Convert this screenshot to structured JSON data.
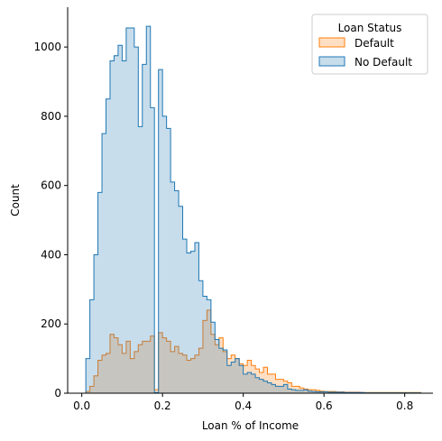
{
  "chart_data": {
    "type": "histogram",
    "xlabel": "Loan % of Income",
    "ylabel": "Count",
    "xlim": [
      -0.035,
      0.87
    ],
    "ylim": [
      0,
      1115
    ],
    "x_ticks": [
      0.0,
      0.2,
      0.4,
      0.6,
      0.8
    ],
    "x_tick_labels": [
      "0.0",
      "0.2",
      "0.4",
      "0.6",
      "0.8"
    ],
    "y_ticks": [
      0,
      200,
      400,
      600,
      800,
      1000
    ],
    "y_tick_labels": [
      "0",
      "200",
      "400",
      "600",
      "800",
      "1000"
    ],
    "grid": false,
    "legend": {
      "title": "Loan Status",
      "placement": "top-right",
      "entries": [
        {
          "label": "Default",
          "color": "#ff7f0e"
        },
        {
          "label": "No Default",
          "color": "#1f77b4"
        }
      ]
    },
    "bin_start": 0.0,
    "bin_width": 0.01,
    "series": [
      {
        "name": "No Default",
        "color": "#1f77b4",
        "fill_opacity": 0.25,
        "values": [
          0,
          100,
          270,
          400,
          580,
          750,
          850,
          960,
          975,
          1005,
          960,
          1055,
          1055,
          1000,
          770,
          950,
          1060,
          825,
          2,
          935,
          800,
          765,
          610,
          585,
          540,
          445,
          405,
          410,
          435,
          325,
          280,
          270,
          205,
          155,
          130,
          125,
          80,
          90,
          100,
          80,
          55,
          60,
          55,
          45,
          40,
          35,
          30,
          25,
          20,
          20,
          25,
          12,
          10,
          8,
          8,
          10,
          6,
          5,
          4,
          4,
          4,
          3,
          3,
          3,
          3,
          2,
          2,
          2,
          2,
          2,
          1,
          1,
          1,
          1,
          1,
          1,
          1,
          1,
          1,
          1,
          1,
          1,
          1,
          1
        ]
      },
      {
        "name": "Default",
        "color": "#ff7f0e",
        "fill_opacity": 0.25,
        "values": [
          0,
          5,
          20,
          50,
          95,
          110,
          115,
          170,
          160,
          140,
          115,
          150,
          100,
          120,
          140,
          150,
          150,
          165,
          10,
          175,
          160,
          150,
          120,
          135,
          115,
          110,
          95,
          100,
          110,
          130,
          210,
          240,
          170,
          140,
          160,
          120,
          100,
          110,
          100,
          85,
          80,
          95,
          80,
          70,
          60,
          75,
          55,
          55,
          40,
          40,
          35,
          30,
          20,
          20,
          15,
          12,
          10,
          10,
          8,
          6,
          5,
          5,
          5,
          4,
          4,
          3,
          3,
          3,
          3,
          2,
          2,
          2,
          2,
          2,
          2,
          2,
          2,
          2,
          2,
          2,
          2,
          2,
          2,
          2
        ]
      }
    ]
  }
}
